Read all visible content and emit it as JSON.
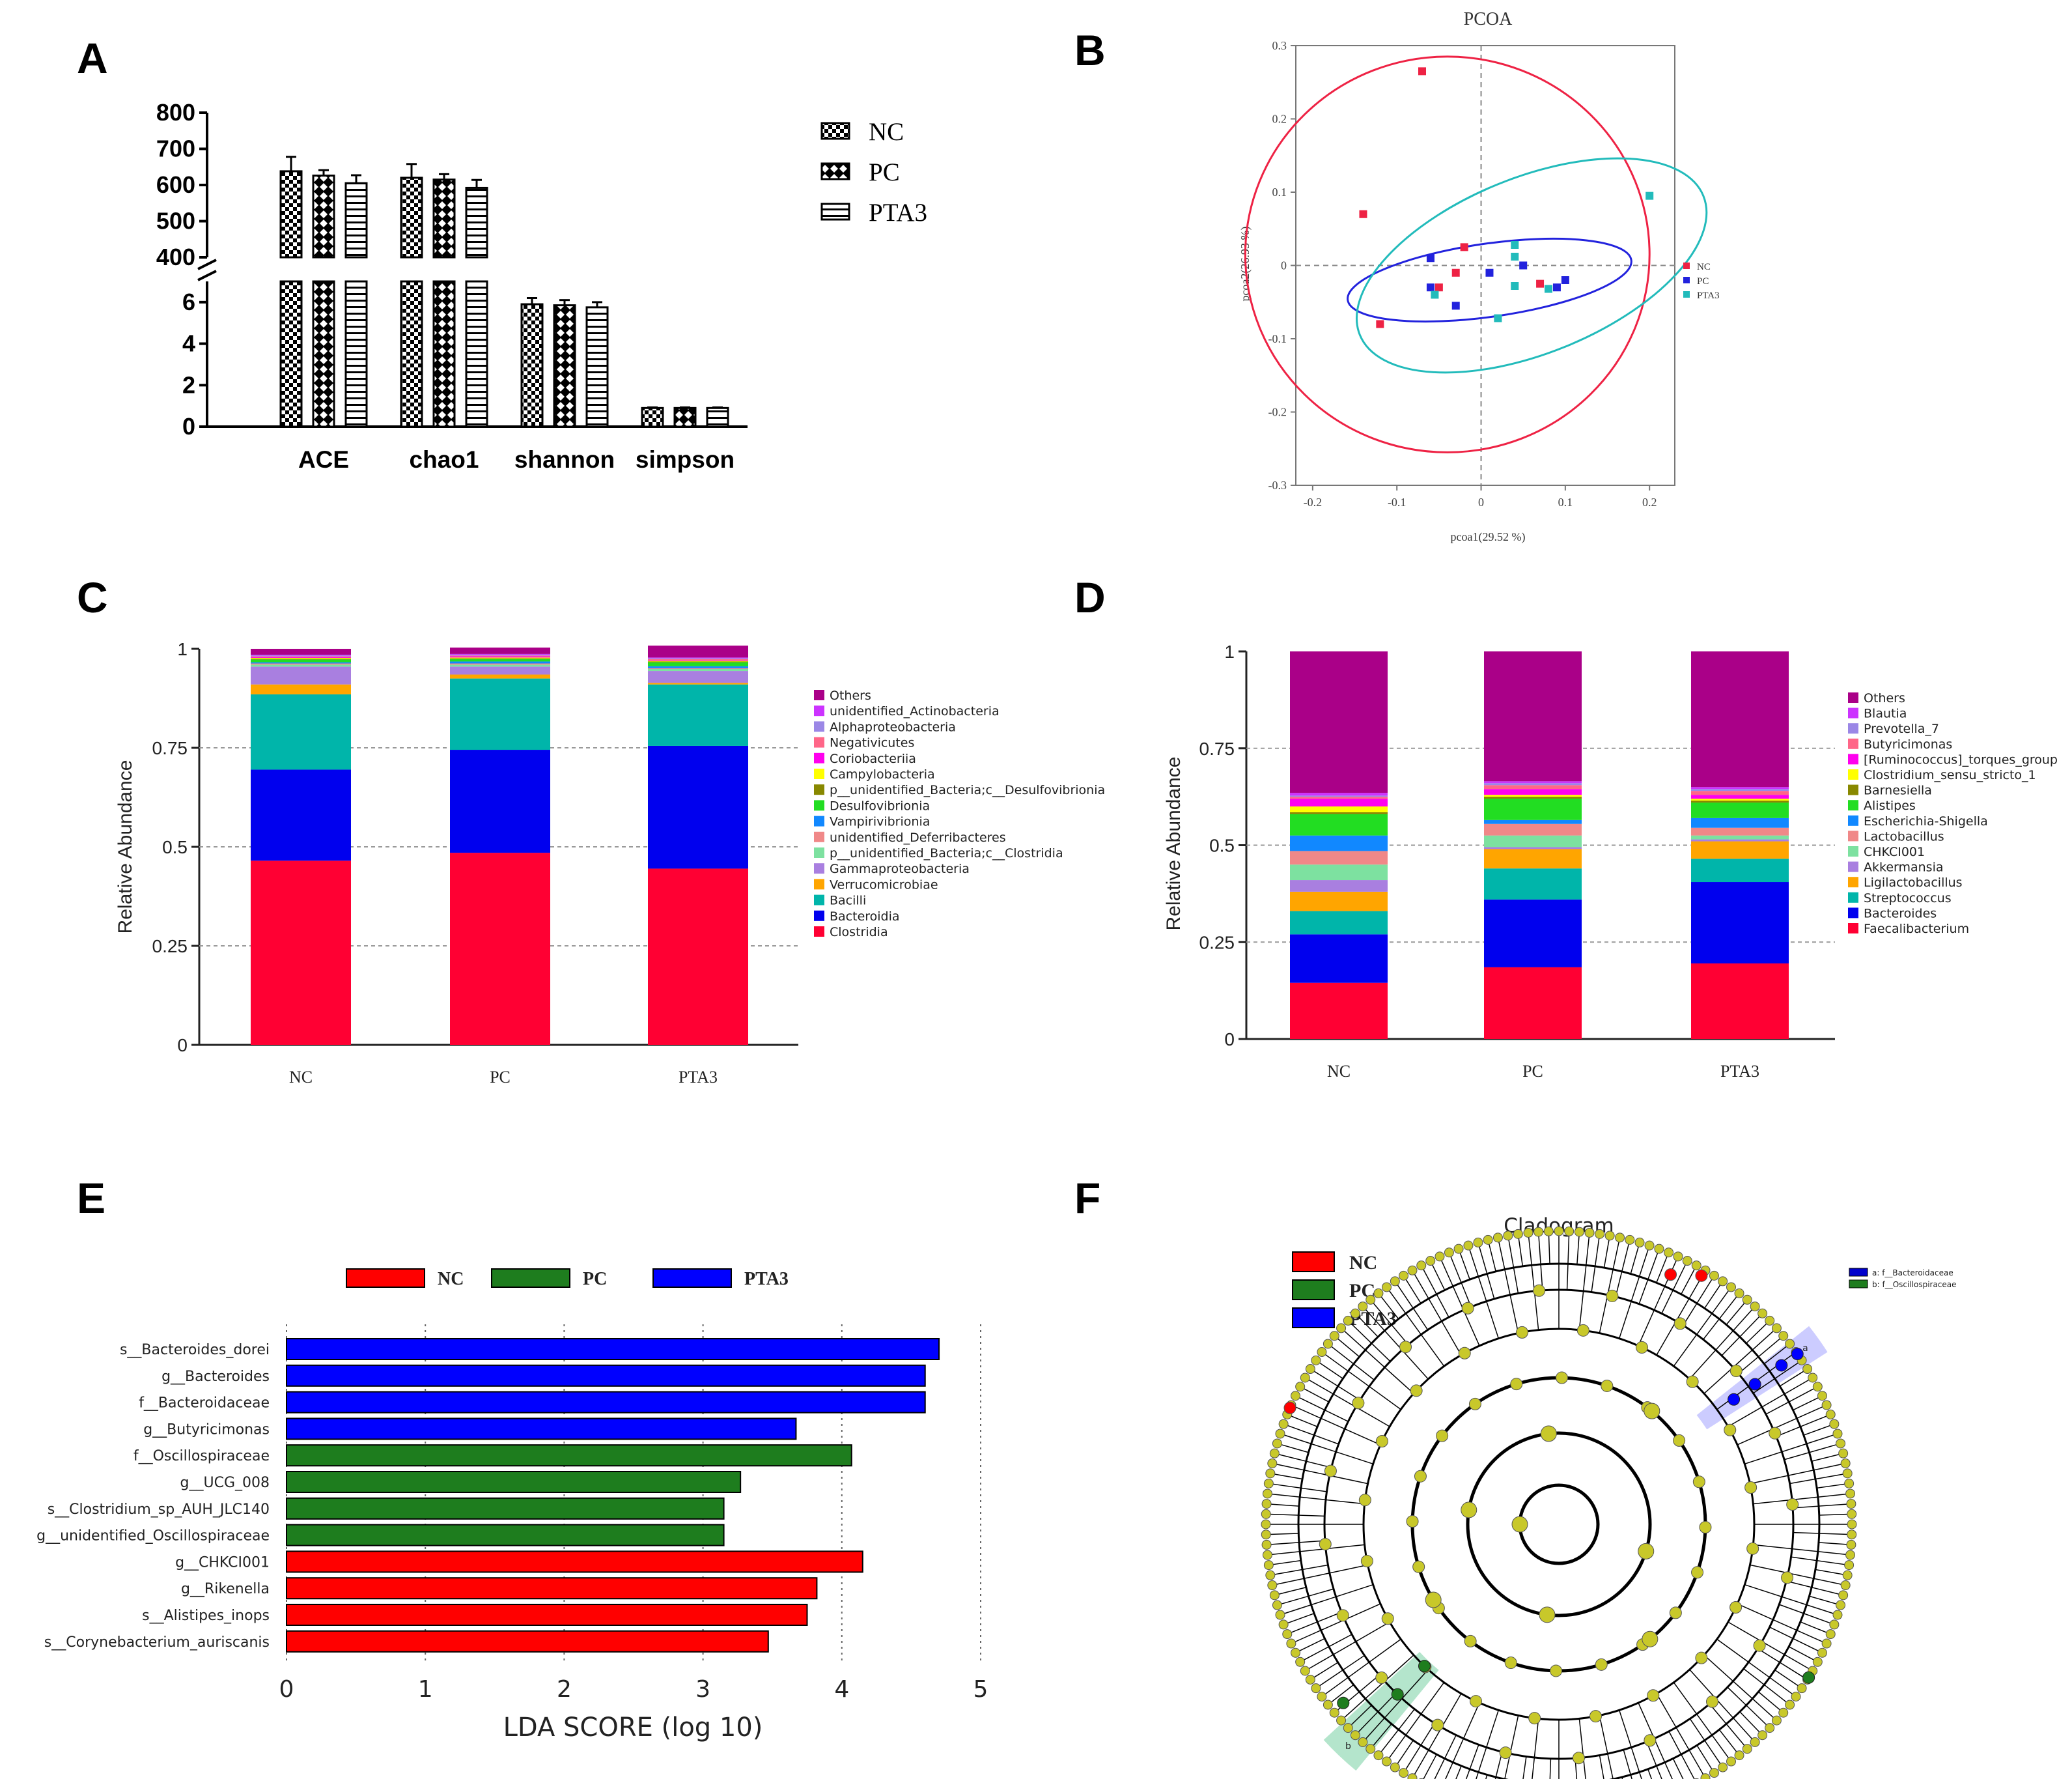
{
  "panel_letters": [
    "A",
    "B",
    "C",
    "D",
    "E",
    "F"
  ],
  "chart_data": [
    {
      "id": "A",
      "type": "bar",
      "categories": [
        "ACE",
        "chao1",
        "shannon",
        "simpson"
      ],
      "series": [
        {
          "name": "NC",
          "values": [
            638,
            620,
            5.9,
            0.9
          ],
          "errors": [
            40,
            38,
            0.3,
            0.03
          ],
          "pattern": "checker"
        },
        {
          "name": "PC",
          "values": [
            626,
            615,
            5.85,
            0.9
          ],
          "errors": [
            15,
            15,
            0.25,
            0.03
          ],
          "pattern": "diamond"
        },
        {
          "name": "PTA3",
          "values": [
            605,
            592,
            5.75,
            0.9
          ],
          "errors": [
            22,
            22,
            0.25,
            0.03
          ],
          "pattern": "hlines"
        }
      ],
      "y_upper_ticks": [
        "400",
        "500",
        "600",
        "700",
        "800"
      ],
      "y_lower_ticks": [
        "0",
        "2",
        "4",
        "6"
      ],
      "ylim_upper": [
        400,
        800
      ],
      "ylim_lower": [
        0,
        7
      ],
      "axis_break": true,
      "legend_position": "top-right"
    },
    {
      "id": "B",
      "type": "scatter",
      "title": "PCOA",
      "xlabel": "pcoa1(29.52 %)",
      "ylabel": "pcoa2(26.93 %)",
      "xlim": [
        -0.22,
        0.23
      ],
      "ylim": [
        -0.3,
        0.3
      ],
      "x_ticks": [
        "-0.2",
        "-0.1",
        "0",
        "0.1",
        "0.2"
      ],
      "y_ticks": [
        "-0.3",
        "-0.2",
        "-0.1",
        "0",
        "0.1",
        "0.2",
        "0.3"
      ],
      "series": [
        {
          "name": "NC",
          "color": "#ee2244",
          "points": [
            [
              -0.07,
              0.265
            ],
            [
              -0.14,
              0.07
            ],
            [
              -0.02,
              0.025
            ],
            [
              -0.05,
              -0.03
            ],
            [
              -0.03,
              -0.01
            ],
            [
              0.07,
              -0.025
            ],
            [
              -0.12,
              -0.08
            ]
          ]
        },
        {
          "name": "PC",
          "color": "#2222dd",
          "points": [
            [
              -0.06,
              0.01
            ],
            [
              -0.06,
              -0.03
            ],
            [
              0.01,
              -0.01
            ],
            [
              0.05,
              0.0
            ],
            [
              0.1,
              -0.02
            ],
            [
              -0.03,
              -0.055
            ],
            [
              0.09,
              -0.03
            ]
          ]
        },
        {
          "name": "PTA3",
          "color": "#22bbbb",
          "points": [
            [
              0.2,
              0.095
            ],
            [
              0.04,
              0.028
            ],
            [
              0.04,
              0.012
            ],
            [
              0.04,
              -0.028
            ],
            [
              0.08,
              -0.032
            ],
            [
              -0.055,
              -0.04
            ],
            [
              0.02,
              -0.072
            ]
          ]
        }
      ],
      "ellipses": [
        {
          "series": "NC",
          "cx": -0.04,
          "cy": 0.015,
          "rx": 0.24,
          "ry": 0.27,
          "angle_deg": 0
        },
        {
          "series": "PC",
          "cx": 0.01,
          "cy": -0.02,
          "rx": 0.17,
          "ry": 0.05,
          "angle_deg": 8
        },
        {
          "series": "PTA3",
          "cx": 0.06,
          "cy": 0.0,
          "rx": 0.22,
          "ry": 0.12,
          "angle_deg": 22
        }
      ],
      "grid": "dashed zero lines",
      "legend_position": "right"
    },
    {
      "id": "C",
      "type": "bar",
      "stacked": true,
      "ylabel": "Relative Abundance",
      "categories": [
        "NC",
        "PC",
        "PTA3"
      ],
      "y_ticks": [
        "0",
        "0.25",
        "0.5",
        "0.75",
        "1"
      ],
      "ylim": [
        0,
        1
      ],
      "series": [
        {
          "name": "Clostridia",
          "color": "#ff0033",
          "values": [
            0.465,
            0.485,
            0.445
          ]
        },
        {
          "name": "Bacteroidia",
          "color": "#0000ee",
          "values": [
            0.23,
            0.26,
            0.31
          ]
        },
        {
          "name": "Bacilli",
          "color": "#00b5aa",
          "values": [
            0.19,
            0.18,
            0.155
          ]
        },
        {
          "name": "Verrucomicrobiae",
          "color": "#ffa500",
          "values": [
            0.025,
            0.01,
            0.004
          ]
        },
        {
          "name": "Gammaproteobacteria",
          "color": "#a97fe0",
          "values": [
            0.045,
            0.02,
            0.03
          ]
        },
        {
          "name": "p__unidentified_Bacteria;c__Clostridia",
          "color": "#7de1a0",
          "values": [
            0.005,
            0.005,
            0.005
          ]
        },
        {
          "name": "unidentified_Deferribacteres",
          "color": "#f08888",
          "values": [
            0.003,
            0.003,
            0.002
          ]
        },
        {
          "name": "Vampirivibrionia",
          "color": "#1188ff",
          "values": [
            0.003,
            0.005,
            0.005
          ]
        },
        {
          "name": "Desulfovibrionia",
          "color": "#22dd22",
          "values": [
            0.007,
            0.006,
            0.01
          ]
        },
        {
          "name": "p__unidentified_Bacteria;c__Desulfovibrionia",
          "color": "#888800",
          "values": [
            0.002,
            0.002,
            0.002
          ]
        },
        {
          "name": "Campylobacteria",
          "color": "#ffff00",
          "values": [
            0.002,
            0.002,
            0.002
          ]
        },
        {
          "name": "Coriobacteriia",
          "color": "#ff00ee",
          "values": [
            0.002,
            0.003,
            0.002
          ]
        },
        {
          "name": "Negativicutes",
          "color": "#ff6688",
          "values": [
            0.002,
            0.002,
            0.002
          ]
        },
        {
          "name": "Alphaproteobacteria",
          "color": "#9b87e6",
          "values": [
            0.002,
            0.002,
            0.002
          ]
        },
        {
          "name": "unidentified_Actinobacteria",
          "color": "#cc33ff",
          "values": [
            0.002,
            0.002,
            0.002
          ]
        },
        {
          "name": "Others",
          "color": "#aa0088",
          "values": [
            0.015,
            0.016,
            0.03
          ]
        }
      ],
      "legend_position": "right"
    },
    {
      "id": "D",
      "type": "bar",
      "stacked": true,
      "ylabel": "Relative Abundance",
      "categories": [
        "NC",
        "PC",
        "PTA3"
      ],
      "y_ticks": [
        "0",
        "0.25",
        "0.5",
        "0.75",
        "1"
      ],
      "ylim": [
        0,
        1
      ],
      "series": [
        {
          "name": "Faecalibacterium",
          "color": "#ff0033",
          "values": [
            0.145,
            0.185,
            0.195
          ]
        },
        {
          "name": "Bacteroides",
          "color": "#0000ee",
          "values": [
            0.125,
            0.175,
            0.21
          ]
        },
        {
          "name": "Streptococcus",
          "color": "#00b5aa",
          "values": [
            0.06,
            0.08,
            0.06
          ]
        },
        {
          "name": "Ligilactobacillus",
          "color": "#ffa500",
          "values": [
            0.05,
            0.05,
            0.045
          ]
        },
        {
          "name": "Akkermansia",
          "color": "#a97fe0",
          "values": [
            0.03,
            0.005,
            0.005
          ]
        },
        {
          "name": "CHKCI001",
          "color": "#7de1a0",
          "values": [
            0.04,
            0.03,
            0.01
          ]
        },
        {
          "name": "Lactobacillus",
          "color": "#f08888",
          "values": [
            0.035,
            0.03,
            0.02
          ]
        },
        {
          "name": "Escherichia-Shigella",
          "color": "#1188ff",
          "values": [
            0.04,
            0.01,
            0.025
          ]
        },
        {
          "name": "Alistipes",
          "color": "#22dd22",
          "values": [
            0.055,
            0.055,
            0.04
          ]
        },
        {
          "name": "Barnesiella",
          "color": "#888800",
          "values": [
            0.005,
            0.005,
            0.005
          ]
        },
        {
          "name": "Clostridium_sensu_stricto_1",
          "color": "#ffff00",
          "values": [
            0.015,
            0.005,
            0.005
          ]
        },
        {
          "name": "[Ruminococcus]_torques_group",
          "color": "#ff00ee",
          "values": [
            0.02,
            0.015,
            0.01
          ]
        },
        {
          "name": "Butyricimonas",
          "color": "#ff6688",
          "values": [
            0.005,
            0.01,
            0.01
          ]
        },
        {
          "name": "Prevotella_7",
          "color": "#9b87e6",
          "values": [
            0.003,
            0.005,
            0.005
          ]
        },
        {
          "name": "Blautia",
          "color": "#cc33ff",
          "values": [
            0.007,
            0.005,
            0.005
          ]
        },
        {
          "name": "Others",
          "color": "#aa0088",
          "values": [
            0.365,
            0.335,
            0.35
          ]
        }
      ],
      "legend_position": "right"
    },
    {
      "id": "E",
      "type": "bar",
      "orientation": "horizontal",
      "xlabel": "LDA SCORE (log 10)",
      "x_ticks": [
        "0",
        "1",
        "2",
        "3",
        "4",
        "5"
      ],
      "xlim": [
        0,
        5
      ],
      "legend": [
        {
          "name": "NC",
          "color": "#ff0000"
        },
        {
          "name": "PC",
          "color": "#1e7d1e"
        },
        {
          "name": "PTA3",
          "color": "#0000ff"
        }
      ],
      "categories": [
        "s__Bacteroides_dorei",
        "g__Bacteroides",
        "f__Bacteroidaceae",
        "g__Butyricimonas",
        "f__Oscillospiraceae",
        "g__UCG_008",
        "s__Clostridium_sp_AUH_JLC140",
        "g__unidentified_Oscillospiraceae",
        "g__CHKCI001",
        "g__Rikenella",
        "s__Alistipes_inops",
        "s__Corynebacterium_auriscanis"
      ],
      "values": [
        4.7,
        4.6,
        4.6,
        3.67,
        4.07,
        3.27,
        3.15,
        3.15,
        4.15,
        3.82,
        3.75,
        3.47
      ],
      "groups": [
        "PTA3",
        "PTA3",
        "PTA3",
        "PTA3",
        "PC",
        "PC",
        "PC",
        "PC",
        "NC",
        "NC",
        "NC",
        "NC"
      ],
      "legend_position": "top"
    },
    {
      "id": "F",
      "type": "other",
      "title": "Cladogram",
      "legend": [
        {
          "name": "NC",
          "color": "#ff0000"
        },
        {
          "name": "PC",
          "color": "#1e7d1e"
        },
        {
          "name": "PTA3",
          "color": "#0000ff"
        }
      ],
      "small_legend": [
        {
          "label": "a: f__Bacteroidaceae",
          "color": "#0000cc"
        },
        {
          "label": "b: f__Oscillospiraceae",
          "color": "#1e7d1e"
        }
      ],
      "highlight_letters": [
        "a",
        "b"
      ],
      "node_color": "#c8c82a"
    }
  ]
}
